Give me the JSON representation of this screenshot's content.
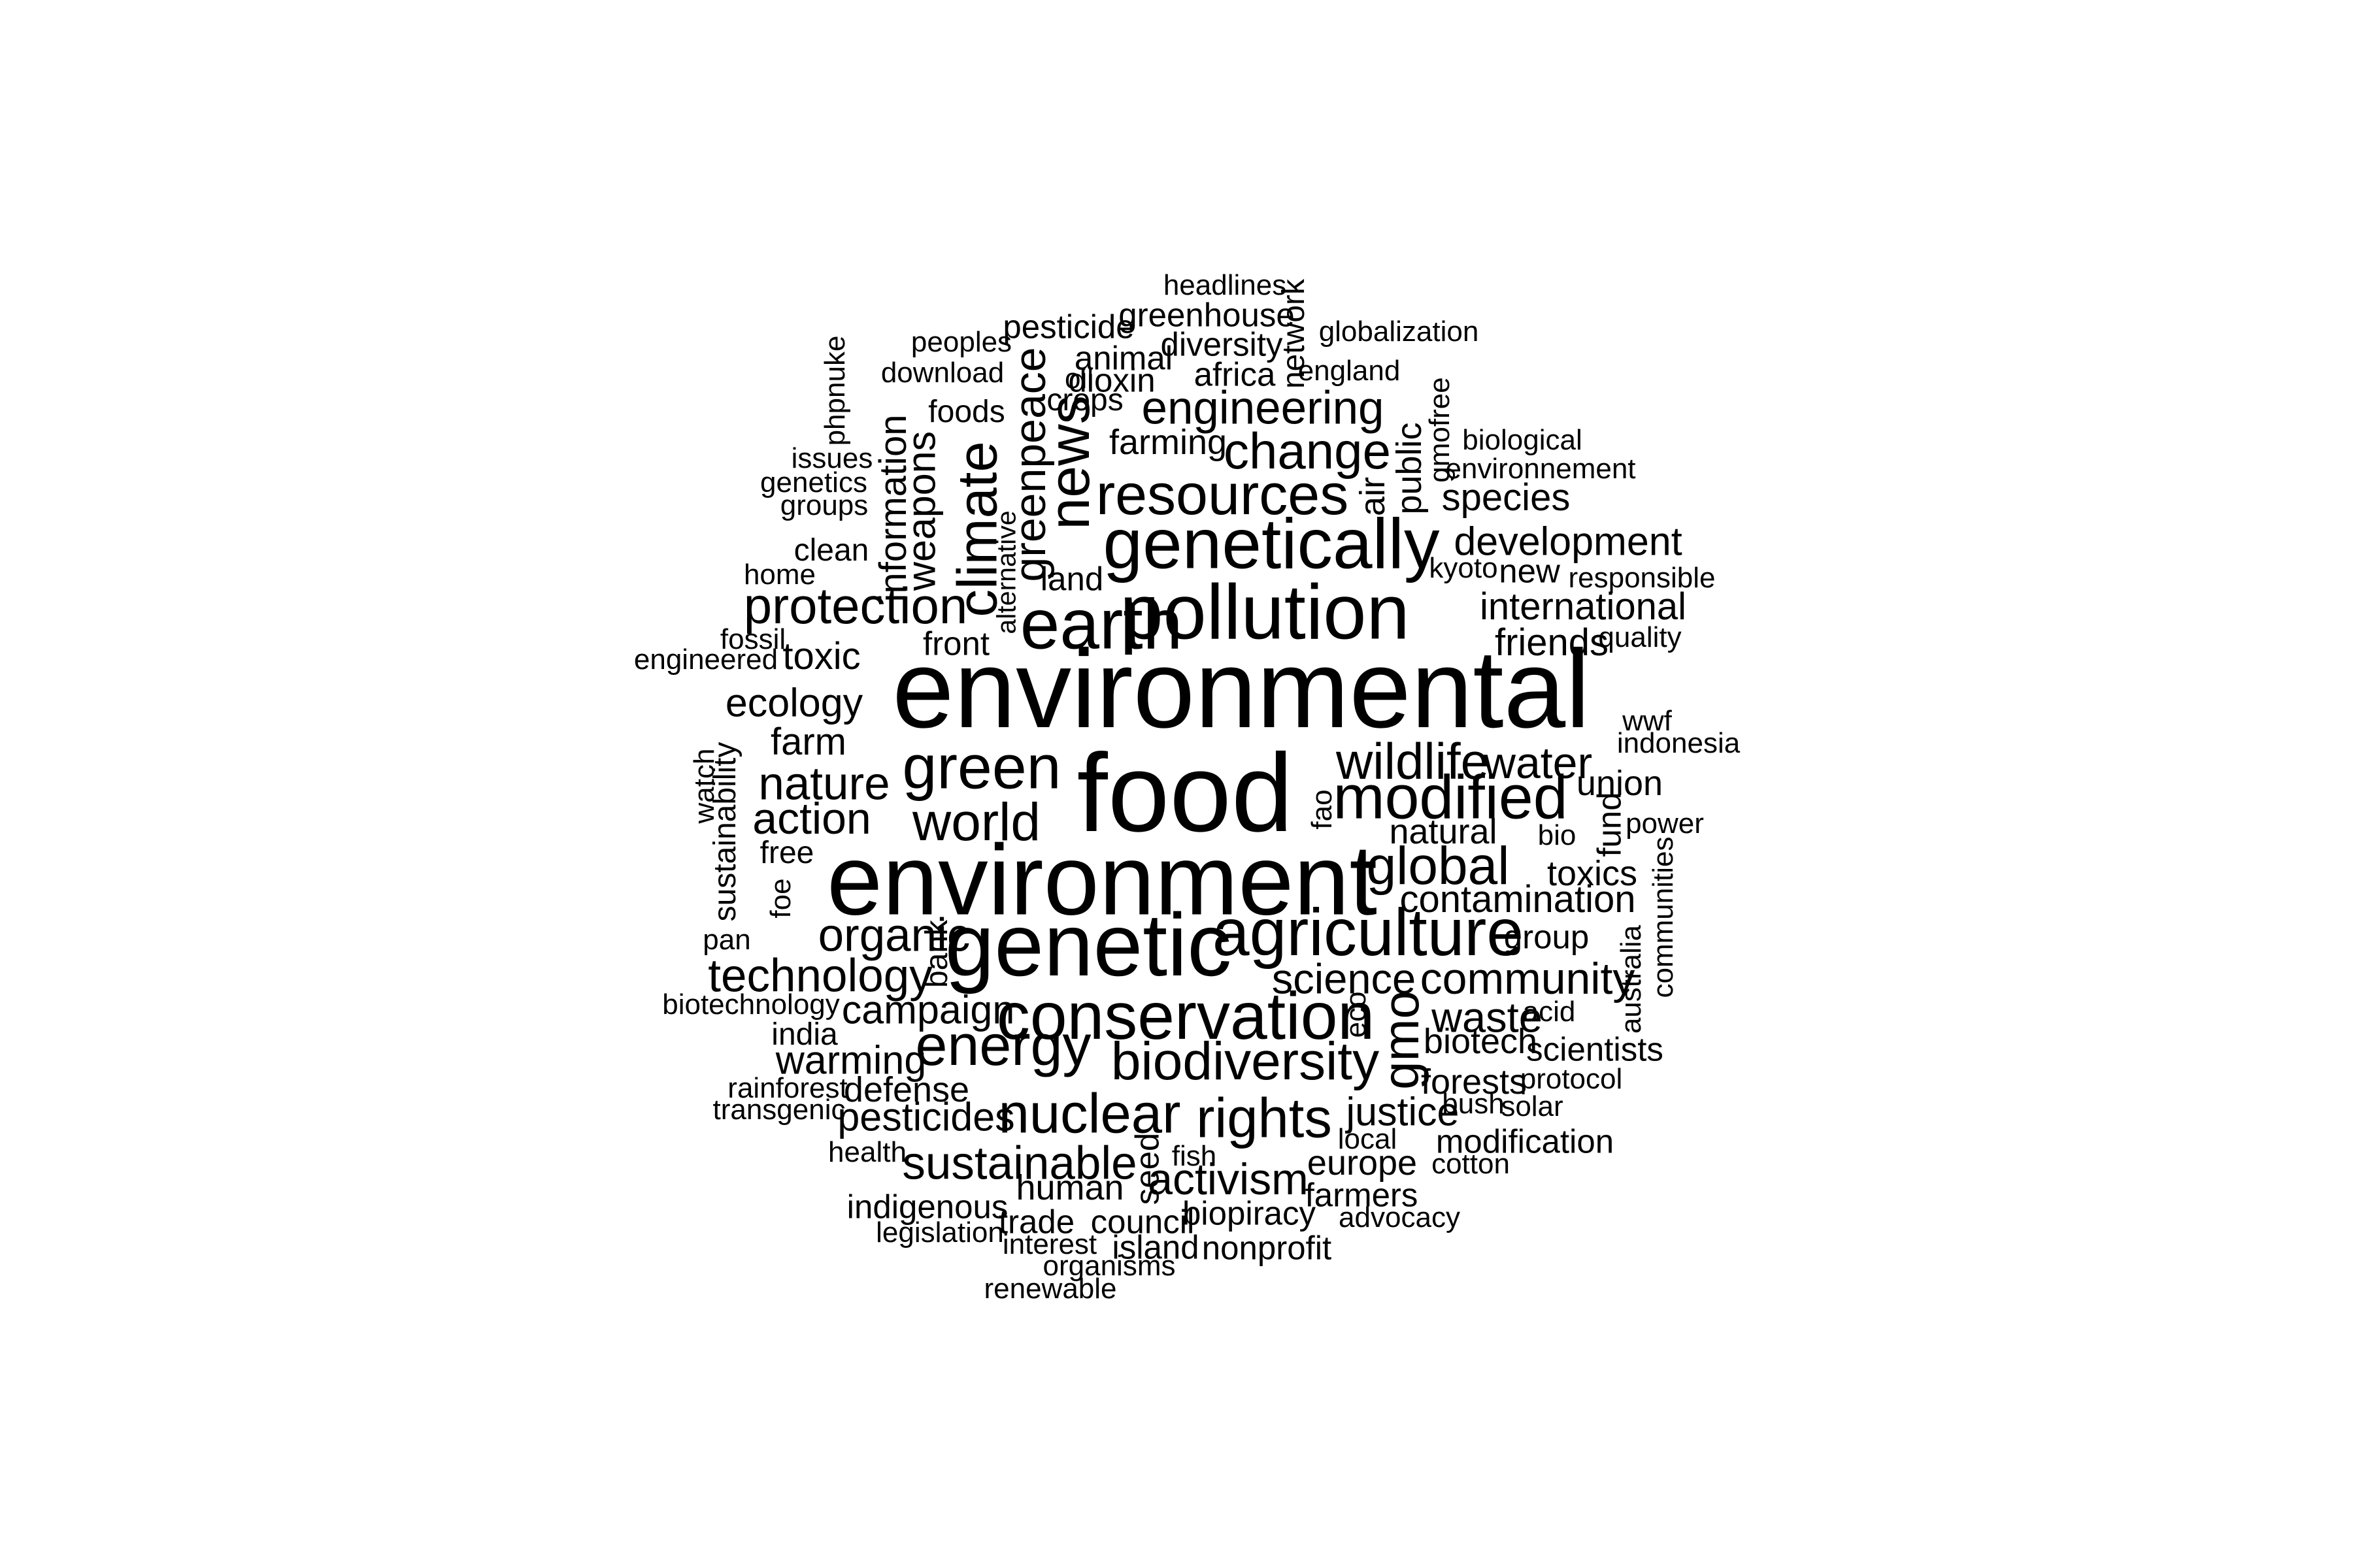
{
  "chart_data": {
    "type": "wordcloud",
    "text_color": "#000000",
    "background": "#ffffff",
    "words": [
      {
        "text": "environmental",
        "size": 5,
        "rotated": false
      },
      {
        "text": "food",
        "size": 5,
        "rotated": false
      },
      {
        "text": "environment",
        "size": 4.5,
        "rotated": false
      },
      {
        "text": "genetic",
        "size": 4,
        "rotated": false
      },
      {
        "text": "pollution",
        "size": 3.5,
        "rotated": false
      },
      {
        "text": "earth",
        "size": 3.2,
        "rotated": false
      },
      {
        "text": "genetically",
        "size": 3.2,
        "rotated": false
      },
      {
        "text": "conservation",
        "size": 3,
        "rotated": false
      },
      {
        "text": "agriculture",
        "size": 3,
        "rotated": false
      },
      {
        "text": "modified",
        "size": 2.8,
        "rotated": false
      },
      {
        "text": "green",
        "size": 2.8,
        "rotated": false
      },
      {
        "text": "resources",
        "size": 2.6,
        "rotated": false
      },
      {
        "text": "energy",
        "size": 2.6,
        "rotated": false
      },
      {
        "text": "news",
        "size": 2.6,
        "rotated": true
      },
      {
        "text": "climate",
        "size": 2.5,
        "rotated": true
      },
      {
        "text": "nuclear",
        "size": 2.5,
        "rotated": false
      },
      {
        "text": "rights",
        "size": 2.5,
        "rotated": false
      },
      {
        "text": "biodiversity",
        "size": 2.4,
        "rotated": false
      },
      {
        "text": "world",
        "size": 2.4,
        "rotated": false
      },
      {
        "text": "global",
        "size": 2.4,
        "rotated": false
      },
      {
        "text": "wildlife",
        "size": 2.3,
        "rotated": false
      },
      {
        "text": "protection",
        "size": 2.3,
        "rotated": false
      },
      {
        "text": "change",
        "size": 2.3,
        "rotated": false
      },
      {
        "text": "gmo",
        "size": 2.3,
        "rotated": true
      },
      {
        "text": "nature",
        "size": 2.1,
        "rotated": false
      },
      {
        "text": "technology",
        "size": 2.1,
        "rotated": false
      },
      {
        "text": "sustainable",
        "size": 2.1,
        "rotated": false
      },
      {
        "text": "organic",
        "size": 2.1,
        "rotated": false
      },
      {
        "text": "engineering",
        "size": 2.1,
        "rotated": false
      },
      {
        "text": "greenpeace",
        "size": 2,
        "rotated": true
      },
      {
        "text": "community",
        "size": 2,
        "rotated": false
      },
      {
        "text": "action",
        "size": 2,
        "rotated": false
      },
      {
        "text": "water",
        "size": 2,
        "rotated": false
      },
      {
        "text": "activism",
        "size": 2,
        "rotated": false
      },
      {
        "text": "science",
        "size": 1.9,
        "rotated": false
      },
      {
        "text": "waste",
        "size": 1.9,
        "rotated": false
      },
      {
        "text": "ecology",
        "size": 1.8,
        "rotated": false
      },
      {
        "text": "development",
        "size": 1.8,
        "rotated": false
      },
      {
        "text": "justice",
        "size": 1.8,
        "rotated": false
      },
      {
        "text": "campaign",
        "size": 1.8,
        "rotated": false
      },
      {
        "text": "weapons",
        "size": 1.8,
        "rotated": true
      },
      {
        "text": "warming",
        "size": 1.8,
        "rotated": false
      },
      {
        "text": "pesticides",
        "size": 1.8,
        "rotated": false
      },
      {
        "text": "toxic",
        "size": 1.7,
        "rotated": false
      },
      {
        "text": "farm",
        "size": 1.7,
        "rotated": false
      },
      {
        "text": "international",
        "size": 1.7,
        "rotated": false
      },
      {
        "text": "friends",
        "size": 1.7,
        "rotated": false
      },
      {
        "text": "contamination",
        "size": 1.7,
        "rotated": false
      },
      {
        "text": "species",
        "size": 1.7,
        "rotated": false
      },
      {
        "text": "information",
        "size": 1.7,
        "rotated": true
      },
      {
        "text": "union",
        "size": 1.6,
        "rotated": false
      },
      {
        "text": "toxics",
        "size": 1.6,
        "rotated": false
      },
      {
        "text": "public",
        "size": 1.6,
        "rotated": true
      },
      {
        "text": "air",
        "size": 1.6,
        "rotated": true
      },
      {
        "text": "farming",
        "size": 1.6,
        "rotated": false
      },
      {
        "text": "biotech",
        "size": 1.6,
        "rotated": false
      },
      {
        "text": "forests",
        "size": 1.6,
        "rotated": false
      },
      {
        "text": "defense",
        "size": 1.6,
        "rotated": false
      },
      {
        "text": "human",
        "size": 1.6,
        "rotated": false
      },
      {
        "text": "europe",
        "size": 1.6,
        "rotated": false
      },
      {
        "text": "natural",
        "size": 1.6,
        "rotated": false
      },
      {
        "text": "group",
        "size": 1.5,
        "rotated": false
      },
      {
        "text": "scientists",
        "size": 1.5,
        "rotated": false
      },
      {
        "text": "modification",
        "size": 1.5,
        "rotated": false
      },
      {
        "text": "front",
        "size": 1.5,
        "rotated": false
      },
      {
        "text": "land",
        "size": 1.5,
        "rotated": false
      },
      {
        "text": "new",
        "size": 1.5,
        "rotated": false
      },
      {
        "text": "council",
        "size": 1.5,
        "rotated": false
      },
      {
        "text": "nonprofit",
        "size": 1.5,
        "rotated": false
      },
      {
        "text": "island",
        "size": 1.5,
        "rotated": false
      },
      {
        "text": "indigenous",
        "size": 1.5,
        "rotated": false
      },
      {
        "text": "farmers",
        "size": 1.5,
        "rotated": false
      },
      {
        "text": "biopiracy",
        "size": 1.5,
        "rotated": false
      },
      {
        "text": "trade",
        "size": 1.5,
        "rotated": false
      },
      {
        "text": "greenhouse",
        "size": 1.5,
        "rotated": false
      },
      {
        "text": "pesticide",
        "size": 1.5,
        "rotated": false
      },
      {
        "text": "diversity",
        "size": 1.5,
        "rotated": false
      },
      {
        "text": "animal",
        "size": 1.5,
        "rotated": false
      },
      {
        "text": "dioxin",
        "size": 1.5,
        "rotated": false
      },
      {
        "text": "africa",
        "size": 1.5,
        "rotated": false
      },
      {
        "text": "crops",
        "size": 1.4,
        "rotated": false
      },
      {
        "text": "foods",
        "size": 1.4,
        "rotated": false
      },
      {
        "text": "clean",
        "size": 1.4,
        "rotated": false
      },
      {
        "text": "free",
        "size": 1.4,
        "rotated": false
      },
      {
        "text": "india",
        "size": 1.4,
        "rotated": false
      },
      {
        "text": "fund",
        "size": 1.5,
        "rotated": true
      },
      {
        "text": "seed",
        "size": 1.5,
        "rotated": true
      },
      {
        "text": "sustainability",
        "size": 1.4,
        "rotated": true
      },
      {
        "text": "network",
        "size": 1.4,
        "rotated": true
      },
      {
        "text": "gmofree",
        "size": 1.3,
        "rotated": true
      },
      {
        "text": "bank",
        "size": 1.4,
        "rotated": true
      },
      {
        "text": "headlines",
        "size": 1.3,
        "rotated": false
      },
      {
        "text": "globalization",
        "size": 1.3,
        "rotated": false
      },
      {
        "text": "peoples",
        "size": 1.3,
        "rotated": false
      },
      {
        "text": "download",
        "size": 1.3,
        "rotated": false
      },
      {
        "text": "oil",
        "size": 1.3,
        "rotated": false
      },
      {
        "text": "england",
        "size": 1.3,
        "rotated": false
      },
      {
        "text": "biological",
        "size": 1.3,
        "rotated": false
      },
      {
        "text": "environnement",
        "size": 1.3,
        "rotated": false
      },
      {
        "text": "issues",
        "size": 1.3,
        "rotated": false
      },
      {
        "text": "genetics",
        "size": 1.3,
        "rotated": false
      },
      {
        "text": "groups",
        "size": 1.3,
        "rotated": false
      },
      {
        "text": "home",
        "size": 1.3,
        "rotated": false
      },
      {
        "text": "kyoto",
        "size": 1.3,
        "rotated": false
      },
      {
        "text": "responsible",
        "size": 1.3,
        "rotated": false
      },
      {
        "text": "fossil",
        "size": 1.3,
        "rotated": false
      },
      {
        "text": "engineered",
        "size": 1.3,
        "rotated": false
      },
      {
        "text": "quality",
        "size": 1.3,
        "rotated": false
      },
      {
        "text": "wwf",
        "size": 1.3,
        "rotated": false
      },
      {
        "text": "indonesia",
        "size": 1.3,
        "rotated": false
      },
      {
        "text": "power",
        "size": 1.3,
        "rotated": false
      },
      {
        "text": "bio",
        "size": 1.3,
        "rotated": false
      },
      {
        "text": "pan",
        "size": 1.3,
        "rotated": false
      },
      {
        "text": "biotechnology",
        "size": 1.3,
        "rotated": false
      },
      {
        "text": "acid",
        "size": 1.3,
        "rotated": false
      },
      {
        "text": "rainforest",
        "size": 1.3,
        "rotated": false
      },
      {
        "text": "transgenic",
        "size": 1.3,
        "rotated": false
      },
      {
        "text": "protocol",
        "size": 1.3,
        "rotated": false
      },
      {
        "text": "bush",
        "size": 1.3,
        "rotated": false
      },
      {
        "text": "solar",
        "size": 1.3,
        "rotated": false
      },
      {
        "text": "health",
        "size": 1.3,
        "rotated": false
      },
      {
        "text": "fish",
        "size": 1.3,
        "rotated": false
      },
      {
        "text": "local",
        "size": 1.3,
        "rotated": false
      },
      {
        "text": "cotton",
        "size": 1.3,
        "rotated": false
      },
      {
        "text": "advocacy",
        "size": 1.3,
        "rotated": false
      },
      {
        "text": "legislation",
        "size": 1.3,
        "rotated": false
      },
      {
        "text": "interest",
        "size": 1.3,
        "rotated": false
      },
      {
        "text": "organisms",
        "size": 1.3,
        "rotated": false
      },
      {
        "text": "renewable",
        "size": 1.3,
        "rotated": false
      },
      {
        "text": "phpnuke",
        "size": 1.3,
        "rotated": true
      },
      {
        "text": "alternative",
        "size": 1.2,
        "rotated": true
      },
      {
        "text": "watch",
        "size": 1.3,
        "rotated": true
      },
      {
        "text": "fao",
        "size": 1.3,
        "rotated": true
      },
      {
        "text": "foe",
        "size": 1.3,
        "rotated": true
      },
      {
        "text": "eco",
        "size": 1.3,
        "rotated": true
      },
      {
        "text": "australia",
        "size": 1.3,
        "rotated": true
      },
      {
        "text": "communities",
        "size": 1.3,
        "rotated": true
      }
    ]
  }
}
